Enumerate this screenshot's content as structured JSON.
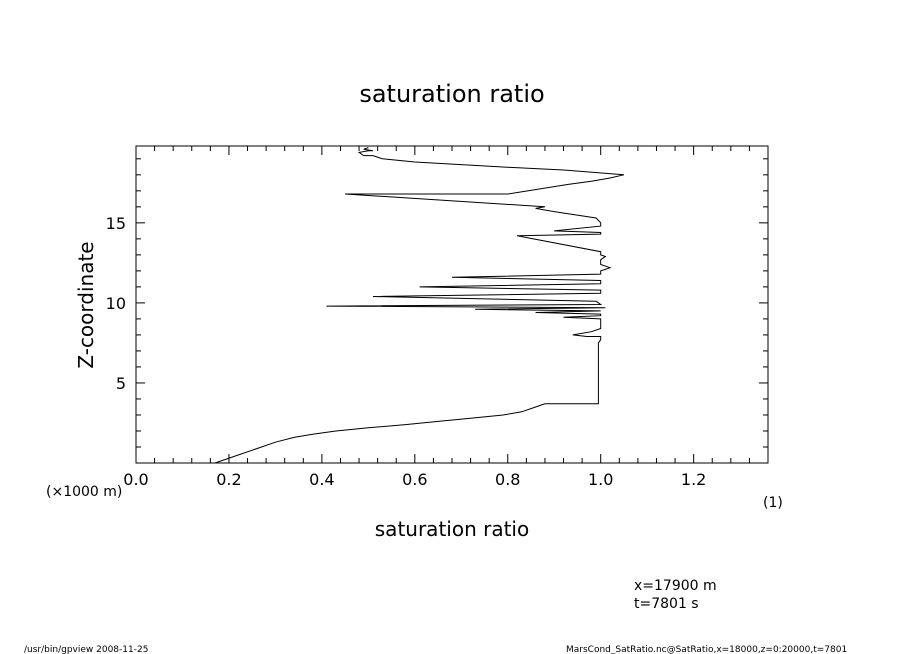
{
  "chart_data": {
    "type": "line",
    "title": "saturation ratio",
    "xlabel": "saturation ratio",
    "ylabel": "Z-coordinate",
    "x_unit": "(1)",
    "y_unit": "(×1000 m)",
    "xlim": [
      0.0,
      1.36
    ],
    "ylim": [
      0.0,
      19.8
    ],
    "x_ticks": [
      0.0,
      0.2,
      0.4,
      0.6,
      0.8,
      1.0,
      1.2
    ],
    "x_tick_labels": [
      "0.0",
      "0.2",
      "0.4",
      "0.6",
      "0.8",
      "1.0",
      "1.2"
    ],
    "y_ticks": [
      5,
      10,
      15
    ],
    "y_tick_labels": [
      "5",
      "10",
      "15"
    ],
    "grid": false,
    "series": [
      {
        "x": [
          0.17,
          0.22,
          0.26,
          0.3,
          0.34,
          0.38,
          0.43,
          0.5,
          0.58,
          0.65,
          0.72,
          0.79,
          0.83,
          0.86,
          0.88,
          0.92,
          0.96,
          0.995,
          0.995,
          0.995,
          0.995,
          0.995,
          1.0,
          1.0,
          1.0,
          0.97,
          0.94,
          0.98,
          1.0,
          1.0,
          1.0,
          0.92,
          1.0,
          1.0,
          0.86,
          1.0,
          0.73,
          1.01,
          0.41,
          1.0,
          0.99,
          0.51,
          1.0,
          1.0,
          0.61,
          1.0,
          1.0,
          0.68,
          1.0,
          1.0,
          1.02,
          1.0,
          1.0,
          1.01,
          1.0,
          1.0,
          0.82,
          1.0,
          1.0,
          0.9,
          1.0,
          1.0,
          0.99,
          0.9,
          0.86,
          0.88,
          0.45,
          0.62,
          0.8,
          0.93,
          0.98,
          1.02,
          1.05,
          0.92,
          0.78,
          0.6,
          0.53,
          0.51,
          0.49,
          0.48,
          0.5,
          0.51,
          0.49,
          0.5
        ],
        "y": [
          0.0,
          0.5,
          0.9,
          1.3,
          1.6,
          1.8,
          2.0,
          2.2,
          2.4,
          2.6,
          2.8,
          3.0,
          3.2,
          3.5,
          3.7,
          3.7,
          3.7,
          3.7,
          4.5,
          5.5,
          6.5,
          7.5,
          7.7,
          7.8,
          7.9,
          7.9,
          8.0,
          8.2,
          8.4,
          8.6,
          9.0,
          9.1,
          9.2,
          9.3,
          9.4,
          9.5,
          9.6,
          9.7,
          9.8,
          9.9,
          10.1,
          10.4,
          10.6,
          10.8,
          11.0,
          11.2,
          11.4,
          11.6,
          11.8,
          12.0,
          12.2,
          12.4,
          12.7,
          12.9,
          13.0,
          13.2,
          14.2,
          14.3,
          14.4,
          14.5,
          14.8,
          15.0,
          15.3,
          15.7,
          15.9,
          16.0,
          16.8,
          16.8,
          16.8,
          17.4,
          17.6,
          17.8,
          18.0,
          18.3,
          18.5,
          18.8,
          19.0,
          19.2,
          19.2,
          19.4,
          19.5,
          19.5,
          19.6,
          19.7
        ]
      }
    ]
  },
  "annotations": {
    "position": "x=17900 m",
    "time": "t=7801 s"
  },
  "footer": {
    "left": "/usr/bin/gpview   2008-11-25",
    "right": "MarsCond_SatRatio.nc@SatRatio,x=18000,z=0:20000,t=7801"
  }
}
